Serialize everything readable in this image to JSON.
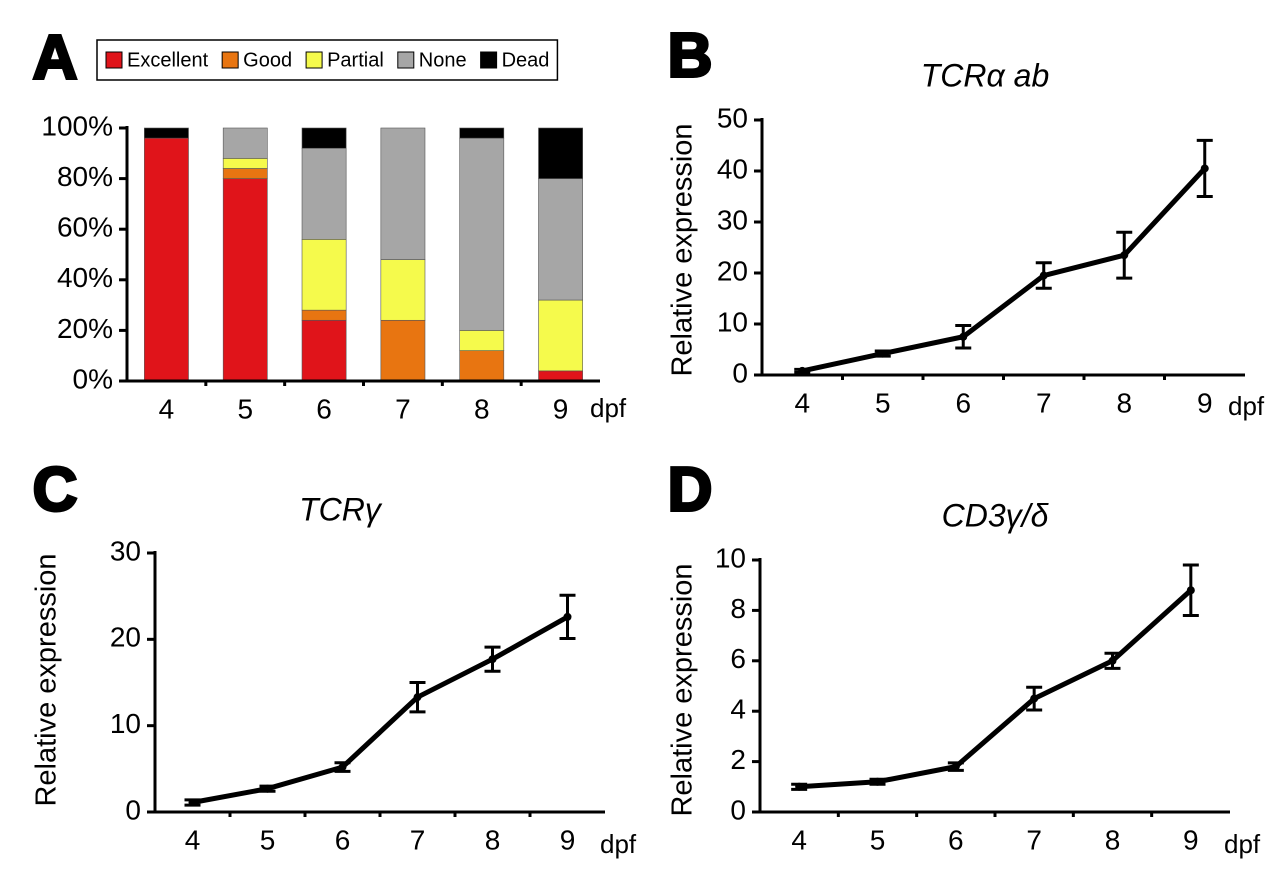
{
  "chart_data": [
    {
      "type": "stacked_bar",
      "panel_label": "A",
      "x_label": "dpf",
      "categories": [
        "4",
        "5",
        "6",
        "7",
        "8",
        "9"
      ],
      "series": [
        {
          "name": "Excellent",
          "color": "#e0141a",
          "values": [
            96,
            80,
            24,
            0,
            0,
            4
          ]
        },
        {
          "name": "Good",
          "color": "#e87511",
          "values": [
            0,
            4,
            4,
            24,
            12,
            0
          ]
        },
        {
          "name": "Partial",
          "color": "#f5fa4c",
          "values": [
            0,
            4,
            28,
            24,
            8,
            28
          ]
        },
        {
          "name": "None",
          "color": "#a6a6a6",
          "values": [
            0,
            12,
            36,
            52,
            76,
            48
          ]
        },
        {
          "name": "Dead",
          "color": "#000000",
          "values": [
            4,
            0,
            8,
            0,
            4,
            20
          ]
        }
      ],
      "ylim": [
        0,
        100
      ],
      "yticks": [
        {
          "value": 0,
          "label": "0%"
        },
        {
          "value": 20,
          "label": "20%"
        },
        {
          "value": 40,
          "label": "40%"
        },
        {
          "value": 60,
          "label": "60%"
        },
        {
          "value": 80,
          "label": "80%"
        },
        {
          "value": 100,
          "label": "100%"
        }
      ]
    },
    {
      "type": "line",
      "panel_label": "B",
      "title": "TCRα ab",
      "y_label": "Relative expression",
      "x_label": "dpf",
      "categories": [
        "4",
        "5",
        "6",
        "7",
        "8",
        "9"
      ],
      "color": "#000000",
      "values": [
        0.8,
        4.2,
        7.5,
        19.5,
        23.5,
        40.5
      ],
      "errors": [
        0.3,
        0.5,
        2.2,
        2.5,
        4.5,
        5.5
      ],
      "ylim": [
        0,
        50
      ],
      "yticks": [
        0,
        10,
        20,
        30,
        40,
        50
      ]
    },
    {
      "type": "line",
      "panel_label": "C",
      "title": "TCRγ",
      "y_label": "Relative expression",
      "x_label": "dpf",
      "categories": [
        "4",
        "5",
        "6",
        "7",
        "8",
        "9"
      ],
      "color": "#000000",
      "values": [
        1.1,
        2.7,
        5.2,
        13.3,
        17.7,
        22.6
      ],
      "errors": [
        0.3,
        0.3,
        0.5,
        1.7,
        1.4,
        2.5
      ],
      "ylim": [
        0,
        30
      ],
      "yticks": [
        0,
        10,
        20,
        30
      ]
    },
    {
      "type": "line",
      "panel_label": "D",
      "title": "CD3γ/δ",
      "y_label": "Relative expression",
      "x_label": "dpf",
      "categories": [
        "4",
        "5",
        "6",
        "7",
        "8",
        "9"
      ],
      "color": "#000000",
      "values": [
        1.0,
        1.2,
        1.8,
        4.5,
        6.0,
        8.8
      ],
      "errors": [
        0.1,
        0.1,
        0.15,
        0.45,
        0.3,
        1.0
      ],
      "ylim": [
        0,
        10
      ],
      "yticks": [
        0,
        2,
        4,
        6,
        8,
        10
      ]
    }
  ]
}
